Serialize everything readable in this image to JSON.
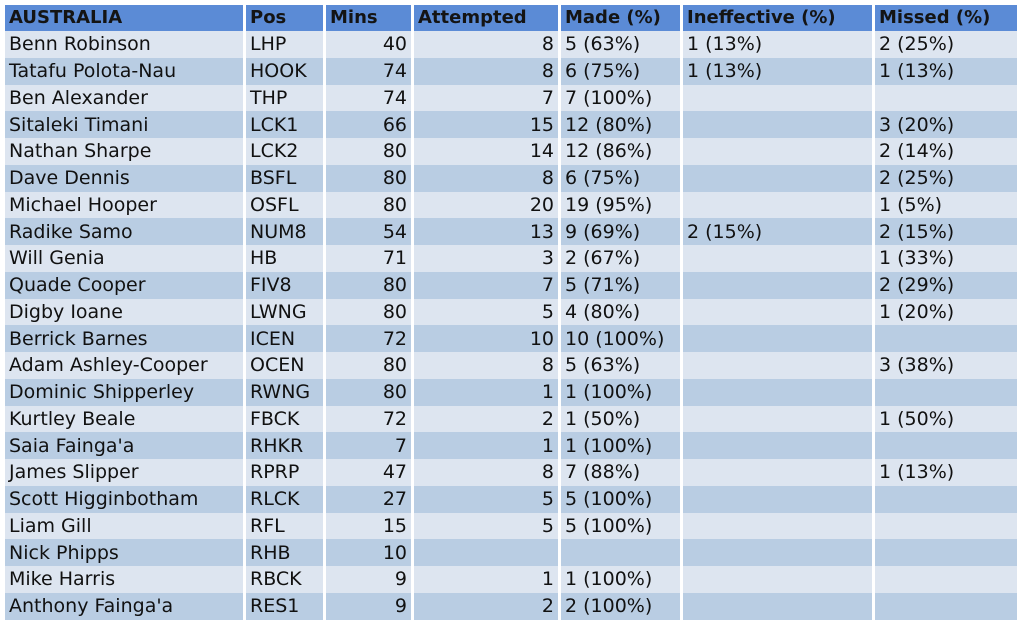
{
  "table": {
    "headers": [
      "AUSTRALIA",
      "Pos",
      "Mins",
      "Attempted",
      "Made (%)",
      "Ineffective (%)",
      "Missed (%)"
    ],
    "rows": [
      {
        "name": "Benn Robinson",
        "pos": "LHP",
        "mins": "40",
        "attempted": "8",
        "made": "5 (63%)",
        "ineffective": "1 (13%)",
        "missed": "2 (25%)"
      },
      {
        "name": "Tatafu Polota-Nau",
        "pos": "HOOK",
        "mins": "74",
        "attempted": "8",
        "made": "6 (75%)",
        "ineffective": "1 (13%)",
        "missed": "1 (13%)"
      },
      {
        "name": "Ben Alexander",
        "pos": "THP",
        "mins": "74",
        "attempted": "7",
        "made": "7 (100%)",
        "ineffective": "",
        "missed": ""
      },
      {
        "name": "Sitaleki Timani",
        "pos": "LCK1",
        "mins": "66",
        "attempted": "15",
        "made": "12 (80%)",
        "ineffective": "",
        "missed": "3 (20%)"
      },
      {
        "name": "Nathan Sharpe",
        "pos": "LCK2",
        "mins": "80",
        "attempted": "14",
        "made": "12 (86%)",
        "ineffective": "",
        "missed": "2 (14%)"
      },
      {
        "name": "Dave Dennis",
        "pos": "BSFL",
        "mins": "80",
        "attempted": "8",
        "made": "6 (75%)",
        "ineffective": "",
        "missed": "2 (25%)"
      },
      {
        "name": "Michael Hooper",
        "pos": "OSFL",
        "mins": "80",
        "attempted": "20",
        "made": "19 (95%)",
        "ineffective": "",
        "missed": "1 (5%)"
      },
      {
        "name": "Radike Samo",
        "pos": "NUM8",
        "mins": "54",
        "attempted": "13",
        "made": "9 (69%)",
        "ineffective": "2 (15%)",
        "missed": "2 (15%)"
      },
      {
        "name": "Will Genia",
        "pos": "HB",
        "mins": "71",
        "attempted": "3",
        "made": "2 (67%)",
        "ineffective": "",
        "missed": "1 (33%)"
      },
      {
        "name": "Quade Cooper",
        "pos": "FIV8",
        "mins": "80",
        "attempted": "7",
        "made": "5 (71%)",
        "ineffective": "",
        "missed": "2 (29%)"
      },
      {
        "name": "Digby Ioane",
        "pos": "LWNG",
        "mins": "80",
        "attempted": "5",
        "made": "4 (80%)",
        "ineffective": "",
        "missed": "1 (20%)"
      },
      {
        "name": "Berrick Barnes",
        "pos": "ICEN",
        "mins": "72",
        "attempted": "10",
        "made": "10 (100%)",
        "ineffective": "",
        "missed": ""
      },
      {
        "name": "Adam Ashley-Cooper",
        "pos": "OCEN",
        "mins": "80",
        "attempted": "8",
        "made": "5 (63%)",
        "ineffective": "",
        "missed": "3 (38%)"
      },
      {
        "name": "Dominic Shipperley",
        "pos": "RWNG",
        "mins": "80",
        "attempted": "1",
        "made": "1 (100%)",
        "ineffective": "",
        "missed": ""
      },
      {
        "name": "Kurtley Beale",
        "pos": "FBCK",
        "mins": "72",
        "attempted": "2",
        "made": "1 (50%)",
        "ineffective": "",
        "missed": "1 (50%)"
      },
      {
        "name": "Saia Fainga'a",
        "pos": "RHKR",
        "mins": "7",
        "attempted": "1",
        "made": "1 (100%)",
        "ineffective": "",
        "missed": ""
      },
      {
        "name": "James Slipper",
        "pos": "RPRP",
        "mins": "47",
        "attempted": "8",
        "made": "7 (88%)",
        "ineffective": "",
        "missed": "1 (13%)"
      },
      {
        "name": "Scott Higginbotham",
        "pos": "RLCK",
        "mins": "27",
        "attempted": "5",
        "made": "5 (100%)",
        "ineffective": "",
        "missed": ""
      },
      {
        "name": "Liam Gill",
        "pos": "RFL",
        "mins": "15",
        "attempted": "5",
        "made": "5 (100%)",
        "ineffective": "",
        "missed": ""
      },
      {
        "name": "Nick Phipps",
        "pos": "RHB",
        "mins": "10",
        "attempted": "",
        "made": "",
        "ineffective": "",
        "missed": ""
      },
      {
        "name": "Mike Harris",
        "pos": "RBCK",
        "mins": "9",
        "attempted": "1",
        "made": "1 (100%)",
        "ineffective": "",
        "missed": ""
      },
      {
        "name": "Anthony Fainga'a",
        "pos": "RES1",
        "mins": "9",
        "attempted": "2",
        "made": "2 (100%)",
        "ineffective": "",
        "missed": ""
      }
    ]
  }
}
